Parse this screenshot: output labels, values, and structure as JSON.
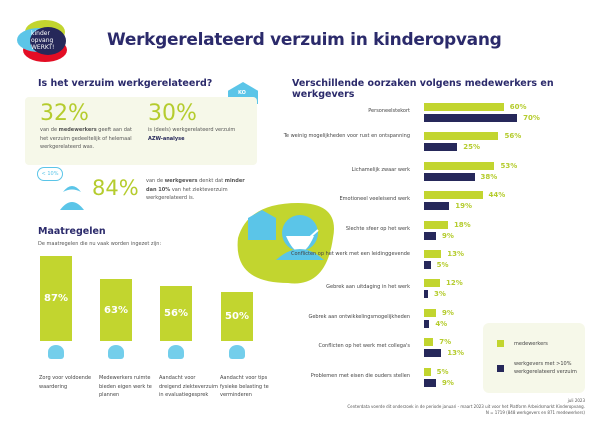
{
  "header": {
    "logo_text": "kinder opvang WERKT!",
    "title": "Werkgerelateerd verzuim in kinderopvang"
  },
  "section1": {
    "title": "Is het verzuim werkgerelateerd?",
    "stat1": {
      "value": "32%",
      "text_pre": "van de ",
      "text_bold": "medewerkers",
      "text_post": " geeft aan dat het verzuim gedeeltelijk of helemaal werkgerelateerd was."
    },
    "stat2": {
      "value": "30%",
      "text": "is (deels) werkgerelateerd verzuim",
      "source": "AZW-analyse"
    },
    "stat3": {
      "value": "84%",
      "bubble": "< 10%",
      "text_pre": "van de ",
      "text_bold1": "werkgevers",
      "text_mid": " denkt dat ",
      "text_bold2": "minder dan 10%",
      "text_post": " van het ziekteverzuim werkgerelateerd is."
    },
    "building_label": "KO"
  },
  "maatregelen": {
    "title": "Maatregelen",
    "subtitle": "De maatregelen die nu vaak worden ingezet zijn:",
    "items": [
      {
        "value": 87,
        "label": "87%",
        "caption": "Zorg voor voldoende waardering",
        "icon": "thumbs-up-icon"
      },
      {
        "value": 63,
        "label": "63%",
        "caption": "Medewerkers ruimte bieden eigen werk te plannen",
        "icon": "people-calendar-icon"
      },
      {
        "value": 56,
        "label": "56%",
        "caption": "Aandacht voor dreigend ziekteverzuim in evaluatiegesprek",
        "icon": "conversation-icon"
      },
      {
        "value": 50,
        "label": "50%",
        "caption": "Aandacht voor tips fysieke belasting te verminderen",
        "icon": "lightbulb-icon"
      }
    ]
  },
  "chart_data": {
    "type": "bar",
    "orientation": "horizontal",
    "title": "Verschillende oorzaken volgens medewerkers en werkgevers",
    "categories": [
      "Personeelstekort",
      "Te weinig mogelijkheden voor rust en ontspanning",
      "Lichamelijk zwaar werk",
      "Emotioneel veeleisend werk",
      "Slechte sfeer op het werk",
      "Conflicten op het werk met een leidinggevende",
      "Gebrek aan uitdaging in het werk",
      "Gebrek aan ontwikkelingsmogelijkheden",
      "Conflicten op het werk met collega's",
      "Problemen met eisen die ouders stellen"
    ],
    "series": [
      {
        "name": "medewerkers",
        "color": "#c2d52f",
        "values": [
          60,
          56,
          53,
          44,
          18,
          13,
          12,
          9,
          7,
          5
        ]
      },
      {
        "name": "werkgevers met >10% werkgerelateerd verzuim",
        "color": "#26285a",
        "values": [
          70,
          25,
          38,
          19,
          9,
          5,
          3,
          4,
          13,
          9
        ]
      }
    ],
    "unit": "%",
    "legend": "bottom-right"
  },
  "footer": {
    "date": "juli 2023",
    "note": "Centerdata voerde dit onderzoek in de periode januari - maart 2023 uit voor het Platform Arbeidsmarkt Kinderopvang.",
    "n": "N = 1719 (848 werkgevers en 871 medewerkers)"
  }
}
